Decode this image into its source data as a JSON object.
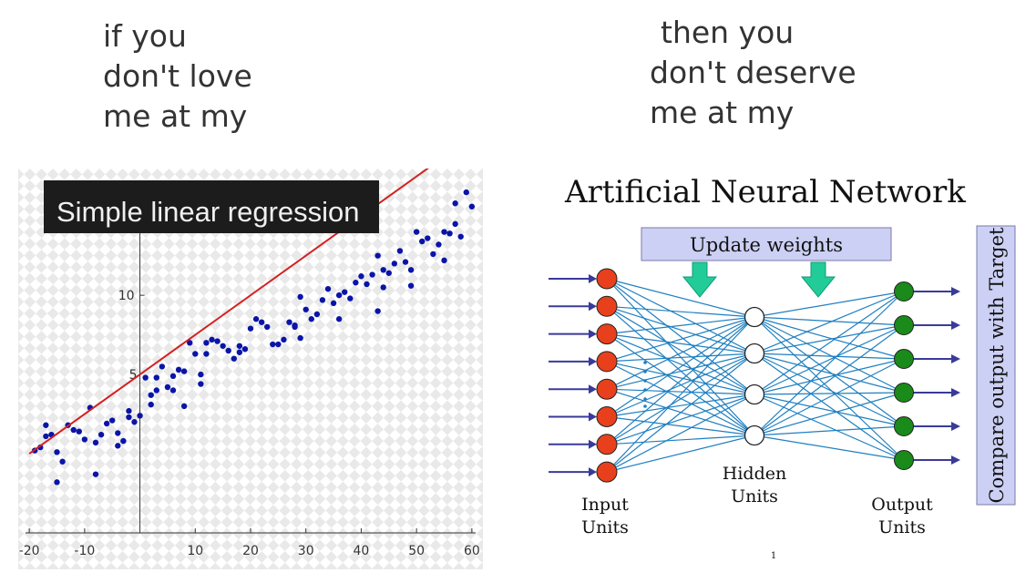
{
  "meme": {
    "left_caption": [
      "if you",
      "don't love",
      "me at my"
    ],
    "right_caption": [
      "then you",
      "don't deserve",
      "me at my"
    ]
  },
  "regression_panel": {
    "title": "Simple linear regression",
    "colors": {
      "points": "#0a14a8",
      "line": "#d42020",
      "title_bg": "#1c1c1c"
    }
  },
  "network_panel": {
    "title": "Artificial Neural Network",
    "update_label": "Update weights",
    "compare_label": "Compare output with Target",
    "input_label": [
      "Input",
      "Units"
    ],
    "hidden_label": [
      "Hidden",
      "Units"
    ],
    "output_label": [
      "Output",
      "Units"
    ],
    "page_number": "1",
    "colors": {
      "input": "#e8401c",
      "hidden": "#ffffff",
      "output": "#1a8a1a",
      "edges": "#1f7fc0",
      "arrows": "#3a3a9a",
      "update_box": "#ccd0f4",
      "down_arrows": "#22cc99"
    }
  },
  "chart_data": {
    "type": "scatter",
    "title": "Simple linear regression",
    "xlabel": "",
    "ylabel": "",
    "xlim": [
      -22,
      62
    ],
    "ylim": [
      -5,
      18
    ],
    "x_ticks": [
      -20,
      -10,
      10,
      20,
      30,
      40,
      50,
      60
    ],
    "y_ticks": [
      10
    ],
    "y_tick_labels": [
      "10"
    ],
    "origin_label": "5",
    "fit_line": {
      "slope": 0.25,
      "intercept": 5.0,
      "x_range": [
        -20,
        60
      ]
    },
    "x": [
      -19,
      -18,
      -17,
      -17,
      -16,
      -15,
      -14,
      -12,
      -11,
      -10,
      -9,
      -8,
      -7,
      -6,
      -5,
      -4,
      -3,
      -2,
      -1,
      0,
      1,
      2,
      3,
      4,
      5,
      6,
      7,
      8,
      9,
      10,
      11,
      12,
      13,
      14,
      15,
      16,
      17,
      18,
      19,
      20,
      21,
      22,
      23,
      24,
      25,
      26,
      27,
      28,
      29,
      30,
      31,
      32,
      33,
      34,
      35,
      36,
      37,
      38,
      39,
      40,
      41,
      42,
      43,
      44,
      45,
      46,
      47,
      48,
      49,
      50,
      51,
      52,
      53,
      54,
      55,
      56,
      57,
      58,
      59,
      60,
      -13,
      -8,
      -4,
      2,
      6,
      11,
      18,
      29,
      36,
      43,
      49,
      55,
      -15,
      -2,
      3,
      8,
      12,
      28,
      44,
      57
    ],
    "y": [
      0.2,
      0.4,
      1.8,
      1.1,
      1.2,
      0.1,
      -0.5,
      1.5,
      1.4,
      0.9,
      2.9,
      0.7,
      1.2,
      1.9,
      2.1,
      1.3,
      0.8,
      2.7,
      2.0,
      2.4,
      4.8,
      3.7,
      4.8,
      5.5,
      4.2,
      4.9,
      5.3,
      3.0,
      7.0,
      6.3,
      4.4,
      6.3,
      7.2,
      7.1,
      6.8,
      6.5,
      6.0,
      6.4,
      6.6,
      7.9,
      8.5,
      8.3,
      8.0,
      6.9,
      6.9,
      7.2,
      8.3,
      8.1,
      7.3,
      9.1,
      8.5,
      8.8,
      9.7,
      10.4,
      9.5,
      10.0,
      10.2,
      9.8,
      10.8,
      11.2,
      10.7,
      11.3,
      12.5,
      11.6,
      11.4,
      12.0,
      12.8,
      12.1,
      11.6,
      14.0,
      13.4,
      13.6,
      12.6,
      13.2,
      14.0,
      13.9,
      14.5,
      13.7,
      16.5,
      15.6,
      1.8,
      -1.3,
      0.5,
      3.1,
      4.0,
      5.0,
      6.8,
      9.9,
      8.5,
      9.0,
      10.6,
      12.2,
      -1.8,
      2.3,
      4.0,
      5.2,
      7.0,
      8.0,
      10.5,
      15.8
    ]
  }
}
